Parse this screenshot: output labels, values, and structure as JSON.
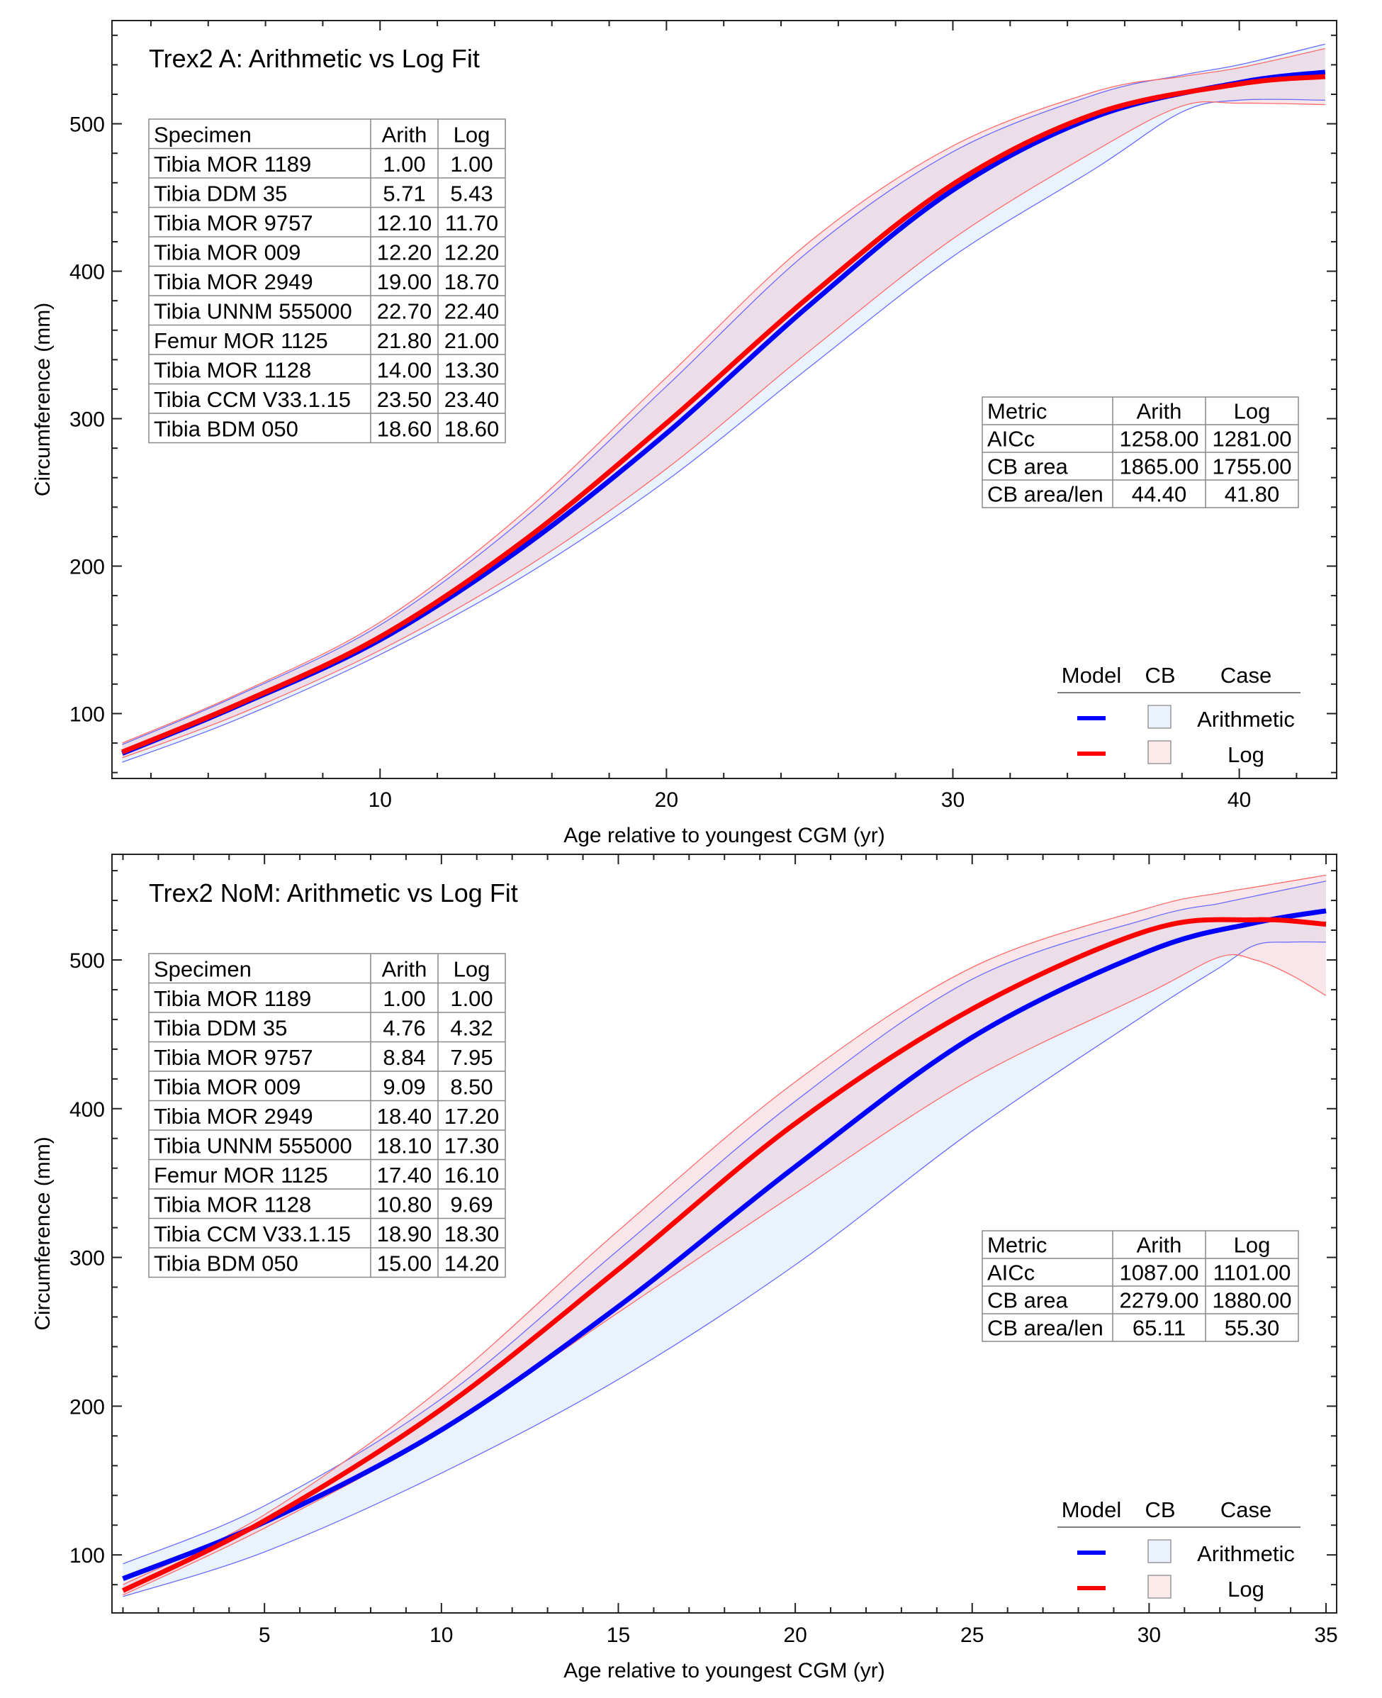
{
  "chart_data": [
    {
      "type": "line",
      "title": "Trex2 A: Arithmetic vs Log Fit",
      "xlabel": "Age relative to youngest CGM (yr)",
      "ylabel": "Circumference (mm)",
      "xlim": [
        0.64,
        43.4
      ],
      "ylim": [
        56,
        570
      ],
      "xticks": [
        10,
        20,
        30,
        40
      ],
      "xminor_step": 2,
      "yticks": [
        100,
        200,
        300,
        400,
        500
      ],
      "yminor_step": 20,
      "grid": false,
      "series": [
        {
          "name": "Arithmetic",
          "role": "model",
          "color": "#0000ff",
          "x": [
            1,
            5,
            10,
            15,
            20,
            25,
            30,
            35,
            40,
            43
          ],
          "y": [
            73,
            105,
            150,
            213,
            290,
            377,
            455,
            505,
            528,
            535
          ]
        },
        {
          "name": "Log",
          "role": "model",
          "color": "#ff0000",
          "x": [
            1,
            5,
            10,
            15,
            20,
            25,
            30,
            35,
            40,
            43
          ],
          "y": [
            74,
            106,
            152,
            217,
            297,
            383,
            459,
            507,
            527,
            532
          ]
        }
      ],
      "bands": [
        {
          "name": "Arithmetic",
          "fill": "#eaf3fd",
          "edge": "#6b6bff",
          "x": [
            1,
            5,
            10,
            15,
            20,
            25,
            30,
            35,
            38,
            40,
            43
          ],
          "lower": [
            67,
            96,
            140,
            193,
            258,
            335,
            410,
            470,
            508,
            516,
            516
          ],
          "upper": [
            79,
            112,
            160,
            232,
            322,
            414,
            481,
            520,
            533,
            540,
            554
          ]
        },
        {
          "name": "Log",
          "fill": "#f7dde3",
          "edge": "#ff6b6b",
          "x": [
            1,
            5,
            10,
            15,
            20,
            25,
            30,
            35,
            38,
            40,
            43
          ],
          "lower": [
            70,
            99,
            143,
            198,
            266,
            346,
            422,
            482,
            512,
            514,
            513
          ],
          "upper": [
            80,
            113,
            162,
            236,
            328,
            420,
            485,
            522,
            532,
            538,
            551
          ]
        }
      ],
      "specimen_table": {
        "headers": [
          "Specimen",
          "Arith",
          "Log"
        ],
        "rows": [
          [
            "Tibia MOR 1189",
            "1.00",
            "1.00"
          ],
          [
            "Tibia DDM 35",
            "5.71",
            "5.43"
          ],
          [
            "Tibia MOR 9757",
            "12.10",
            "11.70"
          ],
          [
            "Tibia MOR 009",
            "12.20",
            "12.20"
          ],
          [
            "Tibia MOR 2949",
            "19.00",
            "18.70"
          ],
          [
            "Tibia UNNM 555000",
            "22.70",
            "22.40"
          ],
          [
            "Femur MOR 1125",
            "21.80",
            "21.00"
          ],
          [
            "Tibia MOR 1128",
            "14.00",
            "13.30"
          ],
          [
            "Tibia CCM V33.1.15",
            "23.50",
            "23.40"
          ],
          [
            "Tibia BDM 050",
            "18.60",
            "18.60"
          ]
        ]
      },
      "metric_table": {
        "headers": [
          "Metric",
          "Arith",
          "Log"
        ],
        "rows": [
          [
            "AICc",
            "1258.00",
            "1281.00"
          ],
          [
            "CB area",
            "1865.00",
            "1755.00"
          ],
          [
            "CB area/len",
            "44.40",
            "41.80"
          ]
        ]
      },
      "legend": {
        "placement": "bottom-right",
        "headers": [
          "Model",
          "CB",
          "Case"
        ],
        "entries": [
          {
            "case": "Arithmetic",
            "line_color": "#0000ff",
            "cb_fill": "#eaf3fd"
          },
          {
            "case": "Log",
            "line_color": "#ff0000",
            "cb_fill": "#fde9e9"
          }
        ]
      }
    },
    {
      "type": "line",
      "title": "Trex2 NoM: Arithmetic vs Log Fit",
      "xlabel": "Age relative to youngest CGM (yr)",
      "ylabel": "Circumference (mm)",
      "xlim": [
        0.69,
        35.3
      ],
      "ylim": [
        61,
        571
      ],
      "xticks": [
        5,
        10,
        15,
        20,
        25,
        30,
        35
      ],
      "xminor_step": 1,
      "yticks": [
        100,
        200,
        300,
        400,
        500
      ],
      "yminor_step": 20,
      "grid": false,
      "series": [
        {
          "name": "Arithmetic",
          "role": "model",
          "color": "#0000ff",
          "x": [
            1,
            5,
            10,
            15,
            20,
            25,
            30,
            33,
            35
          ],
          "y": [
            84,
            122,
            184,
            267,
            361,
            448,
            506,
            525,
            533
          ]
        },
        {
          "name": "Log",
          "role": "model",
          "color": "#ff0000",
          "x": [
            1,
            5,
            10,
            15,
            20,
            25,
            30,
            33,
            35
          ],
          "y": [
            76,
            123,
            198,
            292,
            390,
            467,
            520,
            527,
            524
          ]
        }
      ],
      "bands": [
        {
          "name": "Arithmetic",
          "fill": "#eaf3fd",
          "edge": "#6b6bff",
          "x": [
            1,
            5,
            10,
            15,
            20,
            25,
            30,
            32,
            33,
            34,
            35
          ],
          "lower": [
            72,
            102,
            155,
            218,
            295,
            385,
            465,
            495,
            510,
            512,
            512
          ],
          "upper": [
            94,
            133,
            205,
            305,
            405,
            487,
            528,
            538,
            543,
            548,
            553
          ]
        },
        {
          "name": "Log",
          "fill": "#f7dde3",
          "edge": "#ff6b6b",
          "x": [
            1,
            5,
            10,
            15,
            20,
            25,
            30,
            32,
            33,
            34,
            35
          ],
          "lower": [
            73,
            118,
            183,
            263,
            343,
            420,
            478,
            502,
            500,
            490,
            476
          ],
          "upper": [
            80,
            127,
            212,
            318,
            418,
            495,
            535,
            545,
            549,
            553,
            557
          ]
        }
      ],
      "specimen_table": {
        "headers": [
          "Specimen",
          "Arith",
          "Log"
        ],
        "rows": [
          [
            "Tibia MOR 1189",
            "1.00",
            "1.00"
          ],
          [
            "Tibia DDM 35",
            "4.76",
            "4.32"
          ],
          [
            "Tibia MOR 9757",
            "8.84",
            "7.95"
          ],
          [
            "Tibia MOR 009",
            "9.09",
            "8.50"
          ],
          [
            "Tibia MOR 2949",
            "18.40",
            "17.20"
          ],
          [
            "Tibia UNNM 555000",
            "18.10",
            "17.30"
          ],
          [
            "Femur MOR 1125",
            "17.40",
            "16.10"
          ],
          [
            "Tibia MOR 1128",
            "10.80",
            "9.69"
          ],
          [
            "Tibia CCM V33.1.15",
            "18.90",
            "18.30"
          ],
          [
            "Tibia BDM 050",
            "15.00",
            "14.20"
          ]
        ]
      },
      "metric_table": {
        "headers": [
          "Metric",
          "Arith",
          "Log"
        ],
        "rows": [
          [
            "AICc",
            "1087.00",
            "1101.00"
          ],
          [
            "CB area",
            "2279.00",
            "1880.00"
          ],
          [
            "CB area/len",
            "65.11",
            "55.30"
          ]
        ]
      },
      "legend": {
        "placement": "bottom-right",
        "headers": [
          "Model",
          "CB",
          "Case"
        ],
        "entries": [
          {
            "case": "Arithmetic",
            "line_color": "#0000ff",
            "cb_fill": "#eaf3fd"
          },
          {
            "case": "Log",
            "line_color": "#ff0000",
            "cb_fill": "#fde9e9"
          }
        ]
      }
    }
  ]
}
